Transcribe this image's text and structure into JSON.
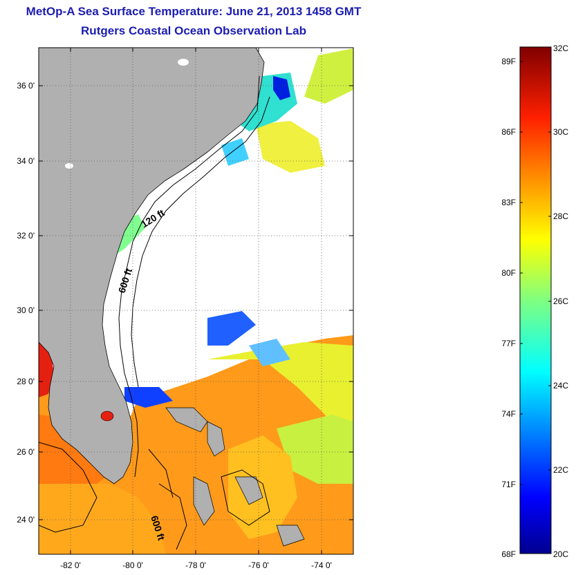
{
  "title": {
    "line1": "MetOp-A Sea Surface Temperature:  June 21, 2013 1458 GMT",
    "line2": "Rutgers Coastal Ocean Observation Lab"
  },
  "map": {
    "lat_labels": [
      "36 0'",
      "34 0'",
      "32 0'",
      "30 0'",
      "28 0'",
      "26 0'",
      "24 0'"
    ],
    "lon_labels": [
      "-82 0'",
      "-80 0'",
      "-78 0'",
      "-76 0'",
      "-74 0'"
    ],
    "depth_labels": [
      "120 ft",
      "600 ft",
      "600 ft"
    ],
    "colors": {
      "land": "#b0b0b0",
      "cloud": "#ffffff",
      "frame": "#000000"
    }
  },
  "colorbar": {
    "fahrenheit_labels": [
      "89F",
      "86F",
      "83F",
      "80F",
      "77F",
      "74F",
      "71F",
      "68F"
    ],
    "celsius_labels": [
      "32C",
      "30C",
      "28C",
      "26C",
      "24C",
      "22C",
      "20C"
    ],
    "range_c": [
      20,
      32
    ],
    "colormap": "jet"
  }
}
